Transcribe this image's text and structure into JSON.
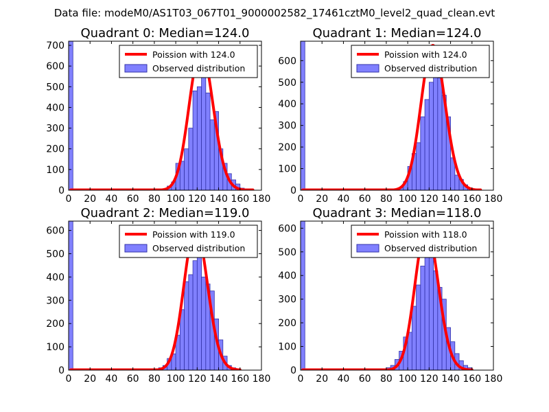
{
  "chart_data": {
    "suptitle": "Data file: modeM0/AS1T03_067T01_9000002582_17461cztM0_level2_quad_clean.evt",
    "colors": {
      "bar_fill": "#8080ff",
      "bar_edge": "#3232a8",
      "curve": "#ff0000"
    },
    "panels": [
      {
        "type": "bar",
        "title": "Quadrant 0: Median=124.0",
        "legend": [
          "Poission with 124.0",
          "Observed distribution"
        ],
        "xlim": [
          0,
          180
        ],
        "xticks": [
          "0",
          "20",
          "40",
          "60",
          "80",
          "100",
          "120",
          "140",
          "160",
          "180"
        ],
        "ylim": [
          0,
          720
        ],
        "yticks": [
          "0",
          "100",
          "200",
          "300",
          "400",
          "500",
          "600",
          "700"
        ],
        "bin_width": 4,
        "bins": [
          [
            0,
            720
          ],
          [
            72,
            5
          ],
          [
            76,
            5
          ],
          [
            92,
            20
          ],
          [
            96,
            40
          ],
          [
            100,
            130
          ],
          [
            104,
            140
          ],
          [
            108,
            200
          ],
          [
            112,
            300
          ],
          [
            116,
            480
          ],
          [
            120,
            500
          ],
          [
            124,
            610
          ],
          [
            128,
            470
          ],
          [
            132,
            340
          ],
          [
            136,
            380
          ],
          [
            140,
            200
          ],
          [
            144,
            130
          ],
          [
            148,
            80
          ],
          [
            152,
            50
          ],
          [
            156,
            30
          ],
          [
            160,
            10
          ]
        ],
        "poisson": {
          "mu": 124.0,
          "amplitude": 680,
          "xrange": [
            2,
            172
          ]
        }
      },
      {
        "type": "bar",
        "title": "Quadrant 1: Median=124.0",
        "legend": [
          "Poission with 124.0",
          "Observed distribution"
        ],
        "xlim": [
          0,
          180
        ],
        "xticks": [
          "0",
          "20",
          "40",
          "60",
          "80",
          "100",
          "120",
          "140",
          "160",
          "180"
        ],
        "ylim": [
          0,
          690
        ],
        "yticks": [
          "0",
          "100",
          "200",
          "300",
          "400",
          "500",
          "600"
        ],
        "bin_width": 4,
        "bins": [
          [
            0,
            690
          ],
          [
            76,
            5
          ],
          [
            92,
            10
          ],
          [
            96,
            40
          ],
          [
            100,
            110
          ],
          [
            104,
            170
          ],
          [
            108,
            220
          ],
          [
            112,
            340
          ],
          [
            116,
            420
          ],
          [
            120,
            500
          ],
          [
            124,
            660
          ],
          [
            128,
            520
          ],
          [
            132,
            440
          ],
          [
            136,
            340
          ],
          [
            140,
            150
          ],
          [
            144,
            70
          ],
          [
            148,
            50
          ],
          [
            152,
            25
          ],
          [
            156,
            10
          ]
        ],
        "poisson": {
          "mu": 124.0,
          "amplitude": 670,
          "xrange": [
            2,
            168
          ]
        }
      },
      {
        "type": "bar",
        "title": "Quadrant 2: Median=119.0",
        "legend": [
          "Poission with 119.0",
          "Observed distribution"
        ],
        "xlim": [
          0,
          180
        ],
        "xticks": [
          "0",
          "20",
          "40",
          "60",
          "80",
          "100",
          "120",
          "140",
          "160",
          "180"
        ],
        "ylim": [
          0,
          640
        ],
        "yticks": [
          "0",
          "100",
          "200",
          "300",
          "400",
          "500",
          "600"
        ],
        "bin_width": 4,
        "bins": [
          [
            0,
            640
          ],
          [
            68,
            5
          ],
          [
            76,
            5
          ],
          [
            84,
            10
          ],
          [
            88,
            20
          ],
          [
            92,
            50
          ],
          [
            96,
            70
          ],
          [
            100,
            150
          ],
          [
            104,
            260
          ],
          [
            108,
            380
          ],
          [
            112,
            410
          ],
          [
            116,
            470
          ],
          [
            120,
            580
          ],
          [
            124,
            400
          ],
          [
            128,
            370
          ],
          [
            132,
            340
          ],
          [
            136,
            220
          ],
          [
            140,
            130
          ],
          [
            144,
            60
          ],
          [
            148,
            20
          ],
          [
            152,
            10
          ]
        ],
        "poisson": {
          "mu": 119.0,
          "amplitude": 610,
          "xrange": [
            2,
            160
          ]
        }
      },
      {
        "type": "bar",
        "title": "Quadrant 3: Median=118.0",
        "legend": [
          "Poission with 118.0",
          "Observed distribution"
        ],
        "xlim": [
          0,
          180
        ],
        "xticks": [
          "0",
          "20",
          "40",
          "60",
          "80",
          "100",
          "120",
          "140",
          "160",
          "180"
        ],
        "ylim": [
          0,
          630
        ],
        "yticks": [
          "0",
          "100",
          "200",
          "300",
          "400",
          "500",
          "600"
        ],
        "bin_width": 4,
        "bins": [
          [
            0,
            630
          ],
          [
            44,
            5
          ],
          [
            56,
            5
          ],
          [
            64,
            5
          ],
          [
            80,
            10
          ],
          [
            84,
            20
          ],
          [
            88,
            45
          ],
          [
            92,
            80
          ],
          [
            96,
            140
          ],
          [
            100,
            160
          ],
          [
            104,
            270
          ],
          [
            108,
            360
          ],
          [
            112,
            440
          ],
          [
            116,
            500
          ],
          [
            120,
            520
          ],
          [
            124,
            420
          ],
          [
            128,
            350
          ],
          [
            132,
            300
          ],
          [
            136,
            180
          ],
          [
            140,
            120
          ],
          [
            144,
            70
          ],
          [
            148,
            40
          ],
          [
            152,
            20
          ],
          [
            156,
            10
          ]
        ],
        "poisson": {
          "mu": 118.0,
          "amplitude": 600,
          "xrange": [
            2,
            160
          ]
        }
      }
    ]
  }
}
